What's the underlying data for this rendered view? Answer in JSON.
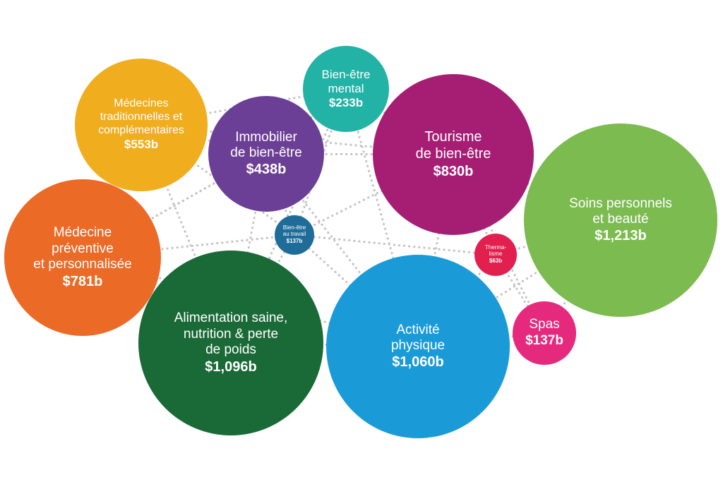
{
  "bubbles": [
    {
      "id": "medecines-traditionnelles",
      "name": "Médecines\ntraditionnelles et\ncomplémentaires",
      "value": "$553b",
      "value_billions": 553,
      "color": "#F0AD1E"
    },
    {
      "id": "bien-etre-mental",
      "name": "Bien-être\nmental",
      "value": "$233b",
      "value_billions": 233,
      "color": "#22B2A6"
    },
    {
      "id": "immobilier-bien-etre",
      "name": "Immobilier\nde bien-être",
      "value": "$438b",
      "value_billions": 438,
      "color": "#6C3F96"
    },
    {
      "id": "tourisme-bien-etre",
      "name": "Tourisme\nde bien-être",
      "value": "$830b",
      "value_billions": 830,
      "color": "#A61E74"
    },
    {
      "id": "soins-personnels-beaute",
      "name": "Soins personnels\net beauté",
      "value": "$1,213b",
      "value_billions": 1213,
      "color": "#7CBB50"
    },
    {
      "id": "medecine-preventive",
      "name": "Médecine\npréventive\net personnalisée",
      "value": "$781b",
      "value_billions": 781,
      "color": "#EB6A26"
    },
    {
      "id": "bien-etre-travail",
      "name": "Bien-être\nau travail",
      "value": "$137b",
      "value_billions": 137,
      "color": "#1F6C99"
    },
    {
      "id": "thermalisme",
      "name": "Therma-\nlisme",
      "value": "$63b",
      "value_billions": 63,
      "color": "#E2204F"
    },
    {
      "id": "alimentation-saine",
      "name": "Alimentation saine,\nnutrition & perte\nde poids",
      "value": "$1,096b",
      "value_billions": 1096,
      "color": "#1A6A37"
    },
    {
      "id": "activite-physique",
      "name": "Activité\nphysique",
      "value": "$1,060b",
      "value_billions": 1060,
      "color": "#1A9BD8"
    },
    {
      "id": "spas",
      "name": "Spas",
      "value": "$137b",
      "value_billions": 137,
      "color": "#E52A7D"
    }
  ],
  "connector_color": "#C4C4C4"
}
